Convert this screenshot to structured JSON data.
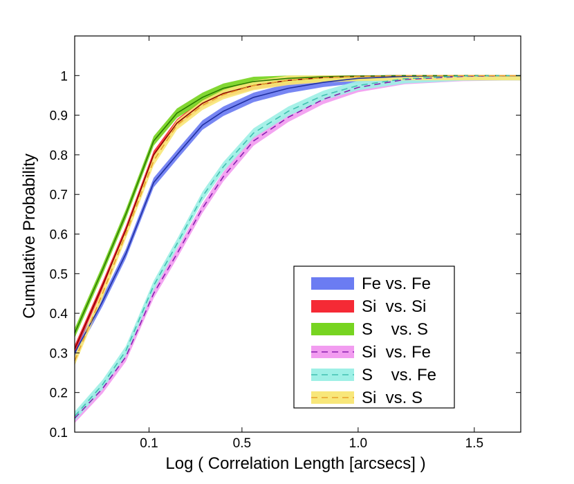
{
  "chart_data": {
    "type": "line",
    "title": "",
    "xlabel": "Log ( Correlation Length [arcsecs] )",
    "ylabel": "Cumulative Probability",
    "xlim": [
      -0.22,
      1.7
    ],
    "ylim": [
      0.1,
      1.1
    ],
    "xticks": [
      {
        "value": 0.1,
        "label": "0.1"
      },
      {
        "value": 0.5,
        "label": "0.5"
      },
      {
        "value": 1.0,
        "label": "1.0"
      },
      {
        "value": 1.5,
        "label": "1.5"
      }
    ],
    "yticks": [
      {
        "value": 0.1,
        "label": "0.1"
      },
      {
        "value": 0.2,
        "label": "0.2"
      },
      {
        "value": 0.3,
        "label": "0.3"
      },
      {
        "value": 0.4,
        "label": "0.4"
      },
      {
        "value": 0.5,
        "label": "0.5"
      },
      {
        "value": 0.6,
        "label": "0.6"
      },
      {
        "value": 0.7,
        "label": "0.7"
      },
      {
        "value": 0.8,
        "label": "0.8"
      },
      {
        "value": 0.9,
        "label": "0.9"
      },
      {
        "value": 1.0,
        "label": "1"
      }
    ],
    "grid": false,
    "legend_position": "bottom-right",
    "x": [
      -0.22,
      -0.1,
      0.0,
      0.12,
      0.22,
      0.33,
      0.42,
      0.55,
      0.7,
      0.85,
      1.0,
      1.2,
      1.45,
      1.7
    ],
    "series": [
      {
        "name": "Fe vs. Fe",
        "legend_label": "Fe vs. Fe",
        "style": "solid-band",
        "band_color": "#6b7cf2",
        "line_color": "#1f2fa0",
        "band_width": 0.012,
        "values": [
          0.3,
          0.43,
          0.55,
          0.73,
          0.8,
          0.875,
          0.91,
          0.945,
          0.968,
          0.983,
          0.993,
          0.998,
          1.0,
          1.0
        ]
      },
      {
        "name": "Si vs. Si",
        "legend_label": "Si  vs. Si",
        "style": "solid-band",
        "band_color": "#f52a35",
        "line_color": "#8a0000",
        "band_width": 0.01,
        "values": [
          0.31,
          0.47,
          0.61,
          0.8,
          0.88,
          0.93,
          0.955,
          0.975,
          0.988,
          0.995,
          0.998,
          1.0,
          1.0,
          1.0
        ]
      },
      {
        "name": "S vs. S",
        "legend_label": "S    vs. S",
        "style": "solid-band",
        "band_color": "#77d421",
        "line_color": "#2a7a00",
        "band_width": 0.012,
        "values": [
          0.35,
          0.51,
          0.65,
          0.835,
          0.905,
          0.945,
          0.968,
          0.985,
          0.993,
          0.997,
          0.999,
          1.0,
          1.0,
          1.0
        ]
      },
      {
        "name": "Si vs. Fe",
        "legend_label": "Si  vs. Fe",
        "style": "dashed-band",
        "band_color": "#f29cf0",
        "line_color": "#8a1fb0",
        "band_width": 0.012,
        "values": [
          0.135,
          0.21,
          0.29,
          0.45,
          0.55,
          0.665,
          0.745,
          0.835,
          0.895,
          0.94,
          0.97,
          0.99,
          0.998,
          1.0
        ]
      },
      {
        "name": "S vs. Fe",
        "legend_label": "S    vs. Fe",
        "style": "dashed-band",
        "band_color": "#9ef0e6",
        "line_color": "#40c0b0",
        "band_width": 0.012,
        "values": [
          0.14,
          0.22,
          0.305,
          0.47,
          0.575,
          0.695,
          0.77,
          0.855,
          0.91,
          0.95,
          0.975,
          0.992,
          0.999,
          1.0
        ]
      },
      {
        "name": "Si vs. S",
        "legend_label": "Si  vs. S",
        "style": "dashed-band",
        "band_color": "#f8e77a",
        "line_color": "#e8a02a",
        "band_width": 0.012,
        "values": [
          0.28,
          0.45,
          0.6,
          0.785,
          0.875,
          0.925,
          0.952,
          0.975,
          0.988,
          0.995,
          0.998,
          1.0,
          1.0,
          1.0
        ]
      }
    ]
  }
}
